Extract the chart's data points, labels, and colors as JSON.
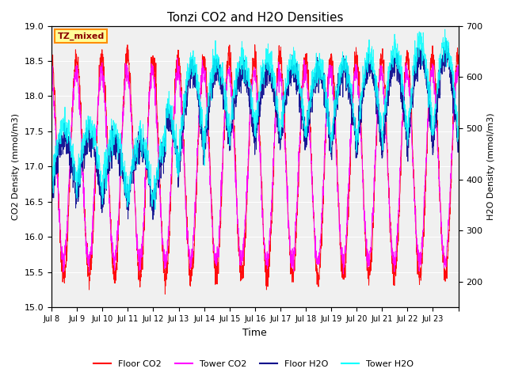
{
  "title": "Tonzi CO2 and H2O Densities",
  "xlabel": "Time",
  "ylabel_left": "CO2 Density (mmol/m3)",
  "ylabel_right": "H2O Density (mmol/m3)",
  "ylim_left": [
    15.0,
    19.0
  ],
  "ylim_right": [
    150,
    700
  ],
  "xtick_labels": [
    "Jul 8",
    "Jul 9",
    "Jul 10",
    "Jul 11",
    "Jul 12",
    "Jul 13",
    "Jul 14",
    "Jul 15",
    "Jul 16",
    "Jul 17",
    "Jul 18",
    "Jul 19",
    "Jul 20",
    "Jul 21",
    "Jul 22",
    "Jul 23"
  ],
  "annotation_text": "TZ_mixed",
  "annotation_color": "#8B0000",
  "annotation_bg": "#FFFF99",
  "annotation_border": "#FF8C00",
  "colors": {
    "floor_co2": "#FF0000",
    "tower_co2": "#FF00FF",
    "floor_h2o": "#00008B",
    "tower_h2o": "#00FFFF"
  },
  "legend_labels": [
    "Floor CO2",
    "Tower CO2",
    "Floor H2O",
    "Tower H2O"
  ],
  "background_color": "#E8E8E8",
  "plot_bg": "#F0F0F0",
  "n_days": 16,
  "seed": 42
}
